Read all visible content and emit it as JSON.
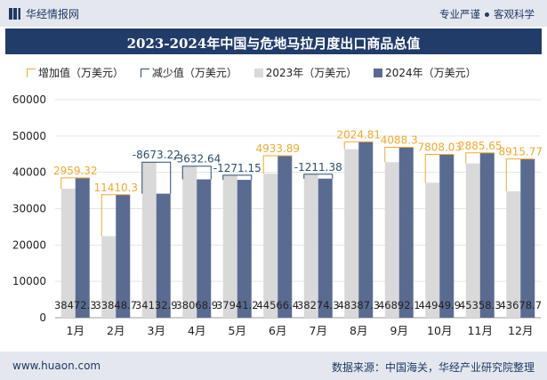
{
  "header": {
    "brand": "华经情报网",
    "tag1": "专业严谨",
    "tag2": "客观科学"
  },
  "footer": {
    "website": "www.huaon.com",
    "source": "数据来源：中国海关，华经产业研究院整理"
  },
  "colors": {
    "increase": "#f2a92c",
    "decrease": "#2a4e6e",
    "y2023": "#d9d9d9",
    "y2024": "#5a6b92"
  },
  "chart_data": {
    "type": "bar",
    "title": "2023-2024年中国与危地马拉月度出口商品总值",
    "legend": [
      "增加值（万美元）",
      "减少值（万美元）",
      "2023年（万美元）",
      "2024年（万美元）"
    ],
    "categories": [
      "1月",
      "2月",
      "3月",
      "4月",
      "5月",
      "6月",
      "7月",
      "8月",
      "9月",
      "10月",
      "11月",
      "12月"
    ],
    "series": [
      {
        "name": "2023年（万美元）",
        "values": [
          35513,
          22438,
          42806,
          41701,
          39212,
          39632,
          39486,
          46363,
          42804,
          37142,
          42473,
          34763
        ]
      },
      {
        "name": "2024年（万美元）",
        "values": [
          38472.3,
          33848.7,
          34132.9,
          38068.9,
          37941.2,
          44566.4,
          38274.3,
          48387.3,
          46892.1,
          44949.9,
          45358.3,
          43678.7
        ]
      }
    ],
    "change_labels": [
      "2959.32",
      "11410.3",
      "-8673.22",
      "-3632.64",
      "-1271.15",
      "4933.89",
      "-1211.38",
      "2024.81",
      "4088.3",
      "7808.03",
      "2885.65",
      "8915.77"
    ],
    "value_labels": [
      "38472.3",
      "33848.7",
      "34132.9",
      "38068.9",
      "37941.2",
      "44566.4",
      "38274.3",
      "48387.3",
      "46892.1",
      "44949.9",
      "45358.3",
      "43678.7"
    ],
    "yticks": [
      "0",
      "10000",
      "20000",
      "30000",
      "40000",
      "50000",
      "60000"
    ],
    "ylim": [
      0,
      60000
    ],
    "grid": true,
    "legend_position": "top"
  }
}
